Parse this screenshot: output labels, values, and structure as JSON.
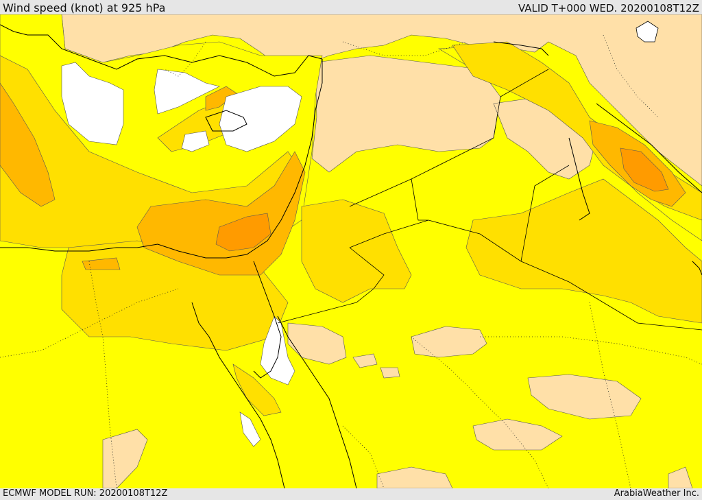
{
  "header": {
    "title": "Wind speed (knot) at 925 hPa",
    "valid": "VALID T+000 WED. 20200108T12Z"
  },
  "footer": {
    "model_run": "ECMWF MODEL RUN: 20200108T12Z",
    "credit": "ArabiaWeather Inc."
  },
  "colors": {
    "calm_white": "#ffffff",
    "light_tan": "#ffe0a8",
    "yellow": "#ffff00",
    "gold": "#ffe000",
    "orange_light": "#ffb800",
    "orange_dark": "#ff9b00",
    "coastline": "#000000"
  }
}
